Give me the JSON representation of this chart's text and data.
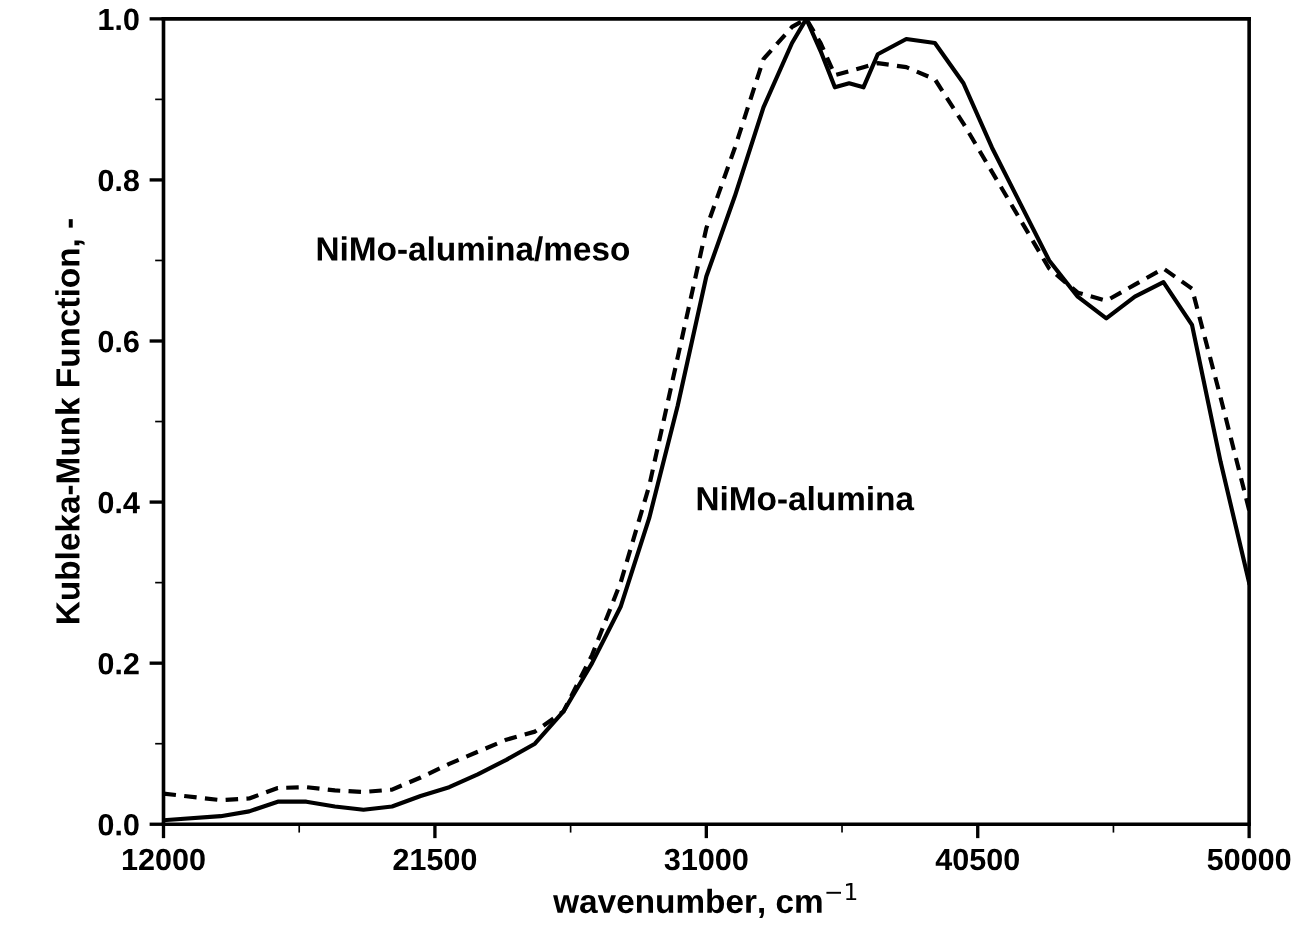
{
  "chart_data": {
    "type": "line",
    "xlabel": "wavenumber, cm$^{−1}$",
    "ylabel": "Kubleka-Munk Function, -",
    "x": [
      12000,
      14000,
      15000,
      16000,
      17000,
      18000,
      19000,
      20000,
      21000,
      22000,
      23000,
      24000,
      25000,
      26000,
      27000,
      28000,
      29000,
      30000,
      31000,
      32000,
      33000,
      34000,
      34500,
      35000,
      35500,
      36000,
      36500,
      37000,
      38000,
      39000,
      40000,
      41000,
      42000,
      43000,
      44000,
      45000,
      46000,
      47000,
      48000,
      49000,
      50000
    ],
    "series": [
      {
        "name": "NiMo-alumina",
        "color": "#000000",
        "line_style": "solid",
        "values": [
          0.005,
          0.01,
          0.016,
          0.028,
          0.028,
          0.022,
          0.018,
          0.022,
          0.035,
          0.046,
          0.062,
          0.08,
          0.1,
          0.14,
          0.2,
          0.27,
          0.38,
          0.52,
          0.68,
          0.78,
          0.89,
          0.97,
          1.0,
          0.96,
          0.915,
          0.92,
          0.915,
          0.956,
          0.975,
          0.97,
          0.92,
          0.84,
          0.77,
          0.7,
          0.655,
          0.628,
          0.655,
          0.673,
          0.62,
          0.45,
          0.3
        ]
      },
      {
        "name": "NiMo-alumina/meso",
        "color": "#000000",
        "line_style": "dashed",
        "values": [
          0.038,
          0.03,
          0.032,
          0.045,
          0.046,
          0.042,
          0.04,
          0.043,
          0.058,
          0.075,
          0.09,
          0.105,
          0.115,
          0.14,
          0.21,
          0.3,
          0.42,
          0.58,
          0.74,
          0.84,
          0.95,
          0.99,
          1.0,
          0.97,
          0.93,
          0.935,
          0.94,
          0.945,
          0.94,
          0.925,
          0.87,
          0.81,
          0.75,
          0.69,
          0.66,
          0.65,
          0.67,
          0.69,
          0.665,
          0.53,
          0.39
        ]
      }
    ],
    "xlim": [
      12000,
      50000
    ],
    "xticks": [
      12000,
      21500,
      31000,
      40500,
      50000
    ],
    "ylim": [
      0,
      1
    ],
    "yticks": [
      {
        "value": 0,
        "label": "0.0"
      },
      {
        "value": 0.2,
        "label": "0.2"
      },
      {
        "value": 0.4,
        "label": "0.4"
      },
      {
        "value": 0.6,
        "label": "0.6"
      },
      {
        "value": 0.8,
        "label": "0.8"
      },
      {
        "value": 1,
        "label": "1.0"
      }
    ],
    "grid": false,
    "legend": false,
    "marker": "none"
  }
}
